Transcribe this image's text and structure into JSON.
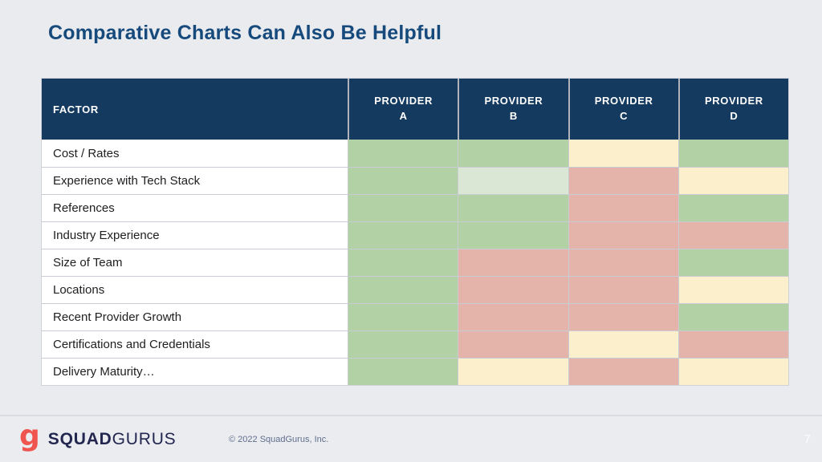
{
  "slide": {
    "title": "Comparative Charts Can Also Be Helpful",
    "page_number": "7",
    "background_color": "#e9ebef",
    "title_color": "#164a7c"
  },
  "table": {
    "header": {
      "factor": "FACTOR",
      "providers": [
        "PROVIDER A",
        "PROVIDER B",
        "PROVIDER C",
        "PROVIDER D"
      ],
      "background_color": "#143a60"
    },
    "cell_colors": {
      "good": "#b2d1a5",
      "fair": "#d9e7d4",
      "neutral": "#fcf0cc",
      "poor": "#e4b3aa"
    },
    "rows": [
      {
        "factor": "Cost / Rates",
        "ratings": [
          "good",
          "good",
          "neutral",
          "good"
        ]
      },
      {
        "factor": "Experience with Tech Stack",
        "ratings": [
          "good",
          "fair",
          "poor",
          "neutral"
        ]
      },
      {
        "factor": "References",
        "ratings": [
          "good",
          "good",
          "poor",
          "good"
        ]
      },
      {
        "factor": "Industry Experience",
        "ratings": [
          "good",
          "good",
          "poor",
          "poor"
        ]
      },
      {
        "factor": "Size of Team",
        "ratings": [
          "good",
          "poor",
          "poor",
          "good"
        ]
      },
      {
        "factor": "Locations",
        "ratings": [
          "good",
          "poor",
          "poor",
          "neutral"
        ]
      },
      {
        "factor": "Recent Provider Growth",
        "ratings": [
          "good",
          "poor",
          "poor",
          "good"
        ]
      },
      {
        "factor": "Certifications and Credentials",
        "ratings": [
          "good",
          "poor",
          "neutral",
          "poor"
        ]
      },
      {
        "factor": "Delivery Maturity…",
        "ratings": [
          "good",
          "neutral",
          "poor",
          "neutral"
        ]
      }
    ]
  },
  "chart_data": {
    "type": "heatmap",
    "title": "Comparative Charts Can Also Be Helpful",
    "rows": [
      "Cost / Rates",
      "Experience with Tech Stack",
      "References",
      "Industry Experience",
      "Size of Team",
      "Locations",
      "Recent Provider Growth",
      "Certifications and Credentials",
      "Delivery Maturity…"
    ],
    "columns": [
      "Provider A",
      "Provider B",
      "Provider C",
      "Provider D"
    ],
    "values": [
      [
        "good",
        "good",
        "neutral",
        "good"
      ],
      [
        "good",
        "fair",
        "poor",
        "neutral"
      ],
      [
        "good",
        "good",
        "poor",
        "good"
      ],
      [
        "good",
        "good",
        "poor",
        "poor"
      ],
      [
        "good",
        "poor",
        "poor",
        "good"
      ],
      [
        "good",
        "poor",
        "poor",
        "neutral"
      ],
      [
        "good",
        "poor",
        "poor",
        "good"
      ],
      [
        "good",
        "poor",
        "neutral",
        "poor"
      ],
      [
        "good",
        "neutral",
        "poor",
        "neutral"
      ]
    ],
    "color_scale": {
      "good": "#b2d1a5",
      "fair": "#d9e7d4",
      "neutral": "#fcf0cc",
      "poor": "#e4b3aa"
    },
    "legend_position": "none",
    "grid": true
  },
  "footer": {
    "logo_mark": "g",
    "logo_bold": "SQUAD",
    "logo_light": "GURUS",
    "copyright": "© 2022 SquadGurus, Inc.",
    "accent_color": "#f0544f"
  }
}
